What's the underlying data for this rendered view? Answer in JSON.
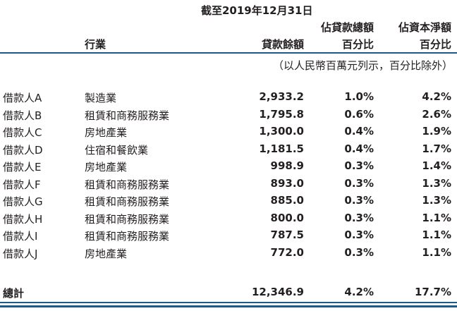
{
  "header": {
    "date_label": "截至2019年12月31日",
    "col_industry": "行業",
    "col_balance": "貸款餘額",
    "col_loan_pct_line1": "佔貸款總額",
    "col_loan_pct_line2": "百分比",
    "col_capital_pct_line1": "佔資本淨額",
    "col_capital_pct_line2": "百分比"
  },
  "unit_note": "（以人民幣百萬元列示，百分比除外）",
  "rows": [
    {
      "borrower": "借款人A",
      "industry": "製造業",
      "balance": "2,933.2",
      "loan_pct": "1.0%",
      "capital_pct": "4.2%"
    },
    {
      "borrower": "借款人B",
      "industry": "租賃和商務服務業",
      "balance": "1,795.8",
      "loan_pct": "0.6%",
      "capital_pct": "2.6%"
    },
    {
      "borrower": "借款人C",
      "industry": "房地產業",
      "balance": "1,300.0",
      "loan_pct": "0.4%",
      "capital_pct": "1.9%"
    },
    {
      "borrower": "借款人D",
      "industry": "住宿和餐飲業",
      "balance": "1,181.5",
      "loan_pct": "0.4%",
      "capital_pct": "1.7%"
    },
    {
      "borrower": "借款人E",
      "industry": "房地產業",
      "balance": "998.9",
      "loan_pct": "0.3%",
      "capital_pct": "1.4%"
    },
    {
      "borrower": "借款人F",
      "industry": "租賃和商務服務業",
      "balance": "893.0",
      "loan_pct": "0.3%",
      "capital_pct": "1.3%"
    },
    {
      "borrower": "借款人G",
      "industry": "租賃和商務服務業",
      "balance": "885.0",
      "loan_pct": "0.3%",
      "capital_pct": "1.3%"
    },
    {
      "borrower": "借款人H",
      "industry": "租賃和商務服務業",
      "balance": "800.0",
      "loan_pct": "0.3%",
      "capital_pct": "1.1%"
    },
    {
      "borrower": "借款人I",
      "industry": "租賃和商務服務業",
      "balance": "787.5",
      "loan_pct": "0.3%",
      "capital_pct": "1.1%"
    },
    {
      "borrower": "借款人J",
      "industry": "房地產業",
      "balance": "772.0",
      "loan_pct": "0.3%",
      "capital_pct": "1.1%"
    }
  ],
  "total": {
    "label": "總計",
    "balance": "12,346.9",
    "loan_pct": "4.2%",
    "capital_pct": "17.7%"
  },
  "colors": {
    "rule": "#1a5b8c",
    "text": "#231f20"
  }
}
